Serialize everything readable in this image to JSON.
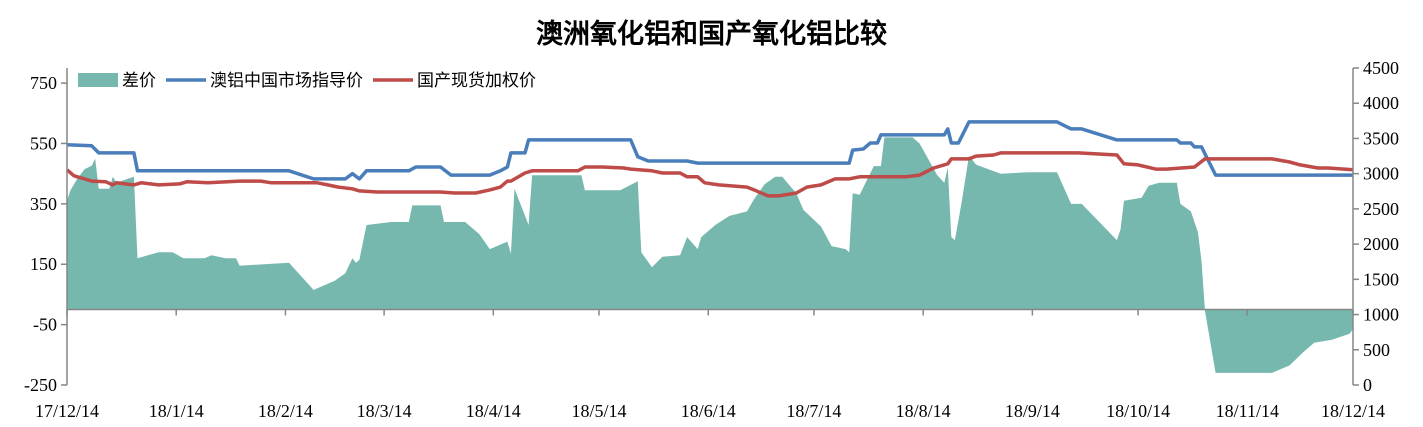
{
  "chart_data": {
    "type": "area+line",
    "title": "澳洲氧化铝和国产氧化铝比较",
    "legend_position": "top-left",
    "grid": false,
    "x_ticks": [
      "17/12/14",
      "18/1/14",
      "18/2/14",
      "18/3/14",
      "18/4/14",
      "18/5/14",
      "18/6/14",
      "18/7/14",
      "18/8/14",
      "18/9/14",
      "18/10/14",
      "18/11/14",
      "18/12/14"
    ],
    "x_tick_dates": [
      "2017-12-14",
      "2018-01-14",
      "2018-02-14",
      "2018-03-14",
      "2018-04-14",
      "2018-05-14",
      "2018-06-14",
      "2018-07-14",
      "2018-08-14",
      "2018-09-14",
      "2018-10-14",
      "2018-11-14",
      "2018-12-14"
    ],
    "xlim": [
      "2017-12-14",
      "2018-12-14"
    ],
    "y_left": {
      "range": [
        -250,
        800
      ],
      "ticks": [
        -250,
        -50,
        150,
        350,
        550,
        750
      ]
    },
    "y_right": {
      "range": [
        0,
        4500
      ],
      "ticks": [
        0,
        500,
        1000,
        1500,
        2000,
        2500,
        3000,
        3500,
        4000,
        4500
      ]
    },
    "series": [
      {
        "name": "差价",
        "kind": "area",
        "axis": "left",
        "color": "#76b8ae",
        "points": [
          [
            "2017-12-14",
            360
          ],
          [
            "2017-12-15",
            395
          ],
          [
            "2017-12-17",
            435
          ],
          [
            "2017-12-19",
            465
          ],
          [
            "2017-12-21",
            476
          ],
          [
            "2017-12-22",
            500
          ],
          [
            "2017-12-23",
            400
          ],
          [
            "2017-12-26",
            400
          ],
          [
            "2017-12-27",
            440
          ],
          [
            "2017-12-28",
            420
          ],
          [
            "2018-01-02",
            440
          ],
          [
            "2018-01-03",
            170
          ],
          [
            "2018-01-09",
            190
          ],
          [
            "2018-01-13",
            190
          ],
          [
            "2018-01-16",
            170
          ],
          [
            "2018-01-22",
            170
          ],
          [
            "2018-01-24",
            180
          ],
          [
            "2018-01-28",
            170
          ],
          [
            "2018-01-31",
            170
          ],
          [
            "2018-02-01",
            145
          ],
          [
            "2018-02-08",
            150
          ],
          [
            "2018-02-15",
            155
          ],
          [
            "2018-02-22",
            65
          ],
          [
            "2018-02-28",
            95
          ],
          [
            "2018-03-03",
            120
          ],
          [
            "2018-03-05",
            170
          ],
          [
            "2018-03-06",
            155
          ],
          [
            "2018-03-07",
            165
          ],
          [
            "2018-03-09",
            280
          ],
          [
            "2018-03-16",
            290
          ],
          [
            "2018-03-21",
            290
          ],
          [
            "2018-03-22",
            345
          ],
          [
            "2018-03-30",
            345
          ],
          [
            "2018-03-31",
            290
          ],
          [
            "2018-04-06",
            290
          ],
          [
            "2018-04-10",
            250
          ],
          [
            "2018-04-13",
            200
          ],
          [
            "2018-04-18",
            225
          ],
          [
            "2018-04-19",
            185
          ],
          [
            "2018-04-20",
            400
          ],
          [
            "2018-04-24",
            280
          ],
          [
            "2018-04-25",
            445
          ],
          [
            "2018-05-09",
            445
          ],
          [
            "2018-05-10",
            395
          ],
          [
            "2018-05-20",
            395
          ],
          [
            "2018-05-25",
            425
          ],
          [
            "2018-05-26",
            190
          ],
          [
            "2018-05-29",
            140
          ],
          [
            "2018-06-01",
            175
          ],
          [
            "2018-06-06",
            180
          ],
          [
            "2018-06-08",
            240
          ],
          [
            "2018-06-11",
            200
          ],
          [
            "2018-06-12",
            240
          ],
          [
            "2018-06-16",
            280
          ],
          [
            "2018-06-20",
            310
          ],
          [
            "2018-06-25",
            325
          ],
          [
            "2018-06-27",
            365
          ],
          [
            "2018-06-30",
            415
          ],
          [
            "2018-07-03",
            440
          ],
          [
            "2018-07-05",
            440
          ],
          [
            "2018-07-09",
            385
          ],
          [
            "2018-07-11",
            330
          ],
          [
            "2018-07-16",
            275
          ],
          [
            "2018-07-19",
            210
          ],
          [
            "2018-07-23",
            200
          ],
          [
            "2018-07-24",
            190
          ],
          [
            "2018-07-25",
            385
          ],
          [
            "2018-07-27",
            380
          ],
          [
            "2018-07-31",
            475
          ],
          [
            "2018-08-02",
            475
          ],
          [
            "2018-08-03",
            570
          ],
          [
            "2018-08-11",
            570
          ],
          [
            "2018-08-13",
            550
          ],
          [
            "2018-08-18",
            445
          ],
          [
            "2018-08-20",
            420
          ],
          [
            "2018-08-21",
            470
          ],
          [
            "2018-08-22",
            240
          ],
          [
            "2018-08-23",
            230
          ],
          [
            "2018-08-25",
            360
          ],
          [
            "2018-08-27",
            510
          ],
          [
            "2018-08-29",
            480
          ],
          [
            "2018-09-05",
            450
          ],
          [
            "2018-09-13",
            455
          ],
          [
            "2018-09-21",
            455
          ],
          [
            "2018-09-25",
            350
          ],
          [
            "2018-09-28",
            350
          ],
          [
            "2018-10-08",
            230
          ],
          [
            "2018-10-09",
            265
          ],
          [
            "2018-10-10",
            360
          ],
          [
            "2018-10-15",
            370
          ],
          [
            "2018-10-17",
            410
          ],
          [
            "2018-10-20",
            420
          ],
          [
            "2018-10-25",
            420
          ],
          [
            "2018-10-26",
            350
          ],
          [
            "2018-10-29",
            325
          ],
          [
            "2018-10-31",
            255
          ],
          [
            "2018-11-01",
            160
          ],
          [
            "2018-11-02",
            -5
          ],
          [
            "2018-11-05",
            -210
          ],
          [
            "2018-11-08",
            -210
          ],
          [
            "2018-11-21",
            -210
          ],
          [
            "2018-11-26",
            -185
          ],
          [
            "2018-11-30",
            -140
          ],
          [
            "2018-12-03",
            -110
          ],
          [
            "2018-12-08",
            -100
          ],
          [
            "2018-12-13",
            -80
          ],
          [
            "2018-12-14",
            -65
          ]
        ]
      },
      {
        "name": "澳铝中国市场指导价",
        "kind": "line",
        "axis": "right",
        "color": "#4a7ebb",
        "points": [
          [
            "2017-12-14",
            3410
          ],
          [
            "2017-12-21",
            3395
          ],
          [
            "2017-12-23",
            3295
          ],
          [
            "2018-01-02",
            3295
          ],
          [
            "2018-01-03",
            3040
          ],
          [
            "2018-02-15",
            3040
          ],
          [
            "2018-02-22",
            2925
          ],
          [
            "2018-03-03",
            2925
          ],
          [
            "2018-03-05",
            3000
          ],
          [
            "2018-03-07",
            2925
          ],
          [
            "2018-03-09",
            3040
          ],
          [
            "2018-03-21",
            3040
          ],
          [
            "2018-03-23",
            3095
          ],
          [
            "2018-03-30",
            3095
          ],
          [
            "2018-04-02",
            2980
          ],
          [
            "2018-04-13",
            2980
          ],
          [
            "2018-04-16",
            3040
          ],
          [
            "2018-04-18",
            3095
          ],
          [
            "2018-04-19",
            3295
          ],
          [
            "2018-04-23",
            3295
          ],
          [
            "2018-04-24",
            3480
          ],
          [
            "2018-05-23",
            3480
          ],
          [
            "2018-05-25",
            3240
          ],
          [
            "2018-05-28",
            3180
          ],
          [
            "2018-06-08",
            3180
          ],
          [
            "2018-06-11",
            3150
          ],
          [
            "2018-07-24",
            3150
          ],
          [
            "2018-07-25",
            3335
          ],
          [
            "2018-07-28",
            3350
          ],
          [
            "2018-07-30",
            3435
          ],
          [
            "2018-08-01",
            3435
          ],
          [
            "2018-08-02",
            3550
          ],
          [
            "2018-08-20",
            3550
          ],
          [
            "2018-08-21",
            3635
          ],
          [
            "2018-08-22",
            3435
          ],
          [
            "2018-08-24",
            3435
          ],
          [
            "2018-08-27",
            3735
          ],
          [
            "2018-09-21",
            3735
          ],
          [
            "2018-09-25",
            3635
          ],
          [
            "2018-09-28",
            3635
          ],
          [
            "2018-10-08",
            3480
          ],
          [
            "2018-10-25",
            3480
          ],
          [
            "2018-10-26",
            3435
          ],
          [
            "2018-10-29",
            3435
          ],
          [
            "2018-10-30",
            3380
          ],
          [
            "2018-11-01",
            3380
          ],
          [
            "2018-11-05",
            2980
          ],
          [
            "2018-12-14",
            2980
          ]
        ]
      },
      {
        "name": "国产现货加权价",
        "kind": "line",
        "axis": "right",
        "color": "#be4b48",
        "points": [
          [
            "2017-12-14",
            3055
          ],
          [
            "2017-12-16",
            2970
          ],
          [
            "2017-12-20",
            2910
          ],
          [
            "2017-12-21",
            2895
          ],
          [
            "2017-12-25",
            2885
          ],
          [
            "2017-12-27",
            2840
          ],
          [
            "2017-12-28",
            2870
          ],
          [
            "2018-01-02",
            2840
          ],
          [
            "2018-01-04",
            2870
          ],
          [
            "2018-01-09",
            2840
          ],
          [
            "2018-01-15",
            2855
          ],
          [
            "2018-01-17",
            2885
          ],
          [
            "2018-01-23",
            2870
          ],
          [
            "2018-02-01",
            2895
          ],
          [
            "2018-02-07",
            2895
          ],
          [
            "2018-02-10",
            2870
          ],
          [
            "2018-02-23",
            2870
          ],
          [
            "2018-02-26",
            2840
          ],
          [
            "2018-03-01",
            2810
          ],
          [
            "2018-03-05",
            2785
          ],
          [
            "2018-03-07",
            2755
          ],
          [
            "2018-03-12",
            2740
          ],
          [
            "2018-03-30",
            2740
          ],
          [
            "2018-04-03",
            2725
          ],
          [
            "2018-04-09",
            2725
          ],
          [
            "2018-04-13",
            2770
          ],
          [
            "2018-04-16",
            2810
          ],
          [
            "2018-04-18",
            2895
          ],
          [
            "2018-04-19",
            2895
          ],
          [
            "2018-04-23",
            3010
          ],
          [
            "2018-04-25",
            3040
          ],
          [
            "2018-05-08",
            3040
          ],
          [
            "2018-05-10",
            3095
          ],
          [
            "2018-05-15",
            3095
          ],
          [
            "2018-05-21",
            3080
          ],
          [
            "2018-05-23",
            3065
          ],
          [
            "2018-05-29",
            3040
          ],
          [
            "2018-06-01",
            3010
          ],
          [
            "2018-06-06",
            3010
          ],
          [
            "2018-06-08",
            2955
          ],
          [
            "2018-06-11",
            2955
          ],
          [
            "2018-06-13",
            2870
          ],
          [
            "2018-06-17",
            2840
          ],
          [
            "2018-06-25",
            2810
          ],
          [
            "2018-06-27",
            2770
          ],
          [
            "2018-07-01",
            2685
          ],
          [
            "2018-07-04",
            2685
          ],
          [
            "2018-07-09",
            2725
          ],
          [
            "2018-07-12",
            2810
          ],
          [
            "2018-07-16",
            2840
          ],
          [
            "2018-07-20",
            2925
          ],
          [
            "2018-07-24",
            2925
          ],
          [
            "2018-07-27",
            2955
          ],
          [
            "2018-08-09",
            2955
          ],
          [
            "2018-08-13",
            2980
          ],
          [
            "2018-08-17",
            3080
          ],
          [
            "2018-08-21",
            3140
          ],
          [
            "2018-08-22",
            3210
          ],
          [
            "2018-08-27",
            3210
          ],
          [
            "2018-08-29",
            3250
          ],
          [
            "2018-09-03",
            3265
          ],
          [
            "2018-09-05",
            3295
          ],
          [
            "2018-09-27",
            3295
          ],
          [
            "2018-10-08",
            3265
          ],
          [
            "2018-10-10",
            3140
          ],
          [
            "2018-10-14",
            3125
          ],
          [
            "2018-10-19",
            3065
          ],
          [
            "2018-10-22",
            3065
          ],
          [
            "2018-10-30",
            3095
          ],
          [
            "2018-11-02",
            3210
          ],
          [
            "2018-11-21",
            3210
          ],
          [
            "2018-11-26",
            3165
          ],
          [
            "2018-11-29",
            3125
          ],
          [
            "2018-12-04",
            3080
          ],
          [
            "2018-12-07",
            3080
          ],
          [
            "2018-12-14",
            3055
          ]
        ]
      }
    ]
  }
}
